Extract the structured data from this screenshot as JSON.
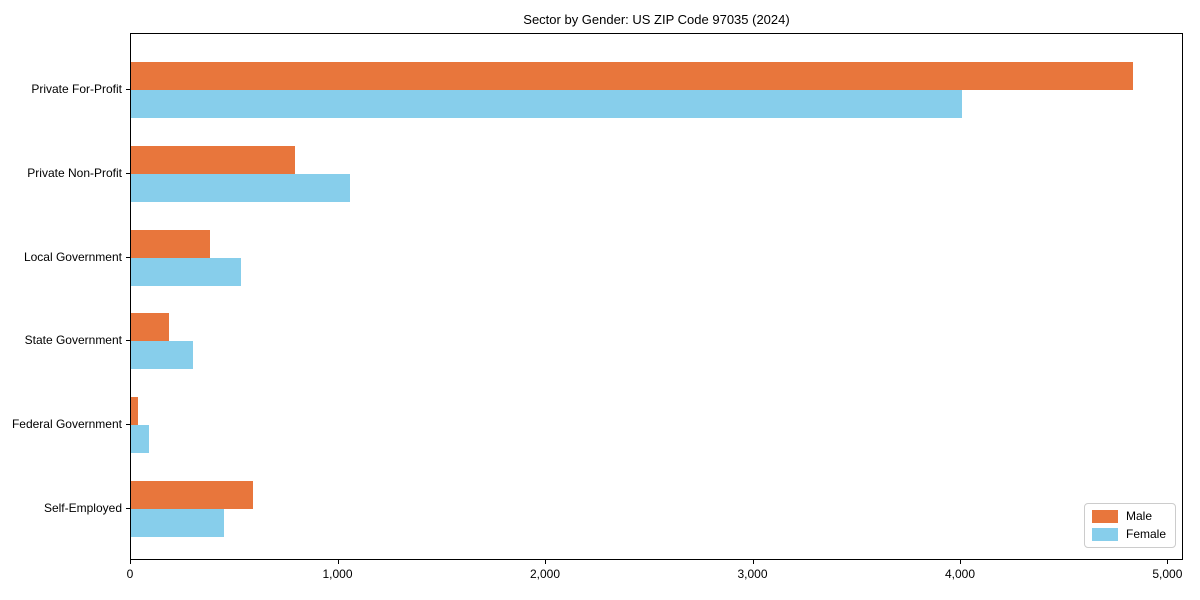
{
  "chart_data": {
    "type": "bar",
    "orientation": "horizontal",
    "title": "Sector by Gender: US ZIP Code 97035 (2024)",
    "categories": [
      "Private For-Profit",
      "Private Non-Profit",
      "Local Government",
      "State Government",
      "Federal Government",
      "Self-Employed"
    ],
    "series": [
      {
        "name": "Male",
        "color": "#E8763C",
        "values": [
          4830,
          790,
          380,
          185,
          35,
          590
        ]
      },
      {
        "name": "Female",
        "color": "#87CEEB",
        "values": [
          4005,
          1055,
          530,
          300,
          85,
          450
        ]
      }
    ],
    "xlabel": "",
    "ylabel": "",
    "xlim": [
      0,
      5075
    ],
    "x_ticks": [
      0,
      1000,
      2000,
      3000,
      4000,
      5000
    ],
    "x_tick_labels": [
      "0",
      "1,000",
      "2,000",
      "3,000",
      "4,000",
      "5,000"
    ],
    "grid": false,
    "legend_position": "lower right",
    "background_color": "#ffffff",
    "spine_color": "#000000"
  }
}
